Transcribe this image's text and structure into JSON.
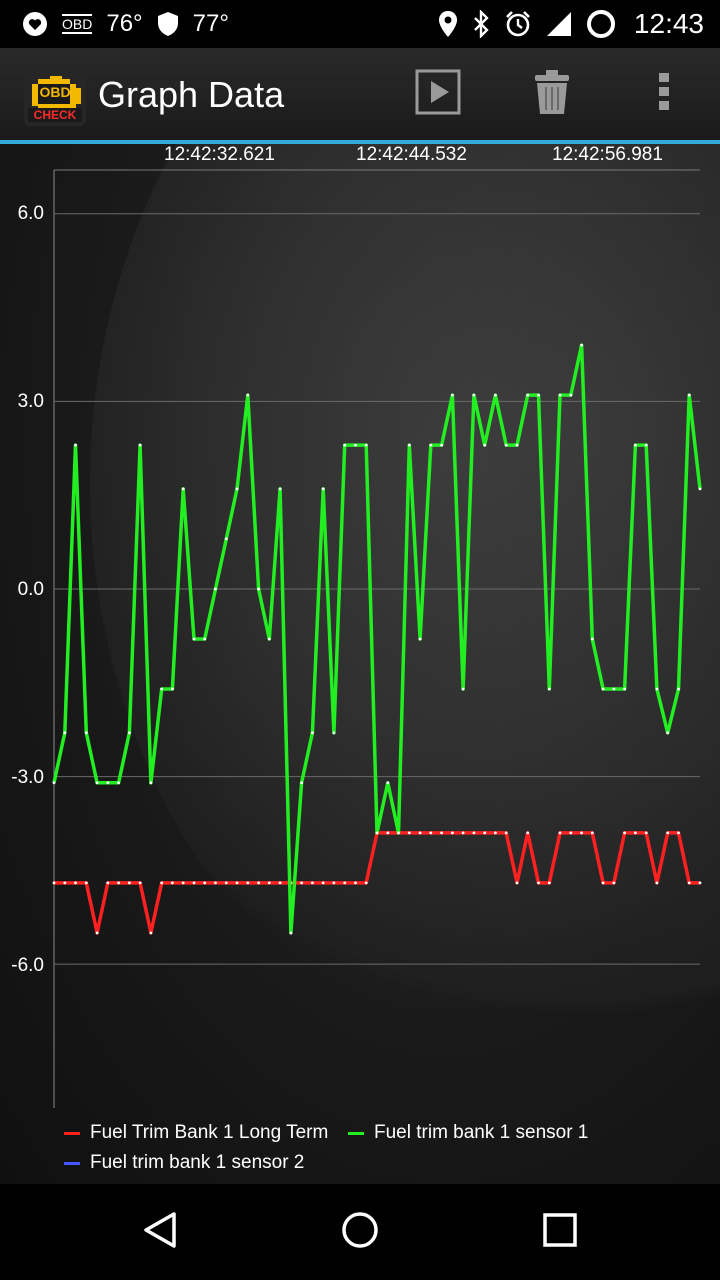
{
  "status_bar": {
    "temp1": "76°",
    "temp2": "77°",
    "time": "12:43",
    "obd_label": "OBD",
    "icons": [
      "notification-heart-icon",
      "obd-icon",
      "shield-icon",
      "location-icon",
      "bluetooth-icon",
      "alarm-icon",
      "signal-icon",
      "battery-icon"
    ]
  },
  "app_bar": {
    "title": "Graph Data",
    "logo_top": "OBD",
    "logo_bottom": "CHECK",
    "actions": [
      "play-icon",
      "trash-icon",
      "overflow-menu-icon"
    ]
  },
  "chart_data": {
    "type": "line",
    "x_tick_labels": [
      "12:42:32.621",
      "12:42:44.532",
      "12:42:56.981"
    ],
    "y_ticks": [
      6.0,
      3.0,
      0.0,
      -3.0,
      -6.0
    ],
    "y_tick_labels": [
      "6.0",
      "3.0",
      "0.0",
      "-3.0",
      "-6.0"
    ],
    "ylim": [
      -8.3,
      6.7
    ],
    "grid": true,
    "legend_position": "bottom",
    "series": [
      {
        "name": "Fuel Trim Bank 1 Long Term",
        "color": "#ff2020",
        "values": [
          -4.7,
          -4.7,
          -4.7,
          -4.7,
          -5.5,
          -4.7,
          -4.7,
          -4.7,
          -4.7,
          -5.5,
          -4.7,
          -4.7,
          -4.7,
          -4.7,
          -4.7,
          -4.7,
          -4.7,
          -4.7,
          -4.7,
          -4.7,
          -4.7,
          -4.7,
          -4.7,
          -4.7,
          -4.7,
          -4.7,
          -4.7,
          -4.7,
          -4.7,
          -4.7,
          -3.9,
          -3.9,
          -3.9,
          -3.9,
          -3.9,
          -3.9,
          -3.9,
          -3.9,
          -3.9,
          -3.9,
          -3.9,
          -3.9,
          -3.9,
          -4.7,
          -3.9,
          -4.7,
          -4.7,
          -3.9,
          -3.9,
          -3.9,
          -3.9,
          -4.7,
          -4.7,
          -3.9,
          -3.9,
          -3.9,
          -4.7,
          -3.9,
          -3.9,
          -4.7,
          -4.7
        ]
      },
      {
        "name": "Fuel trim bank 1 sensor 1",
        "color": "#22ee22",
        "values": [
          -3.1,
          -2.3,
          2.3,
          -2.3,
          -3.1,
          -3.1,
          -3.1,
          -2.3,
          2.3,
          -3.1,
          -1.6,
          -1.6,
          1.6,
          -0.8,
          -0.8,
          0.0,
          0.8,
          1.6,
          3.1,
          0.0,
          -0.8,
          1.6,
          -5.5,
          -3.1,
          -2.3,
          1.6,
          -2.3,
          2.3,
          2.3,
          2.3,
          -3.9,
          -3.1,
          -3.9,
          2.3,
          -0.8,
          2.3,
          2.3,
          3.1,
          -1.6,
          3.1,
          2.3,
          3.1,
          2.3,
          2.3,
          3.1,
          3.1,
          -1.6,
          3.1,
          3.1,
          3.9,
          -0.8,
          -1.6,
          -1.6,
          -1.6,
          2.3,
          2.3,
          -1.6,
          -2.3,
          -1.6,
          3.1,
          1.6
        ]
      },
      {
        "name": "Fuel trim bank 1 sensor 2",
        "color": "#4455ff",
        "values": []
      }
    ]
  },
  "nav_bar": {
    "icons": [
      "back-icon",
      "home-icon",
      "recents-icon"
    ]
  }
}
